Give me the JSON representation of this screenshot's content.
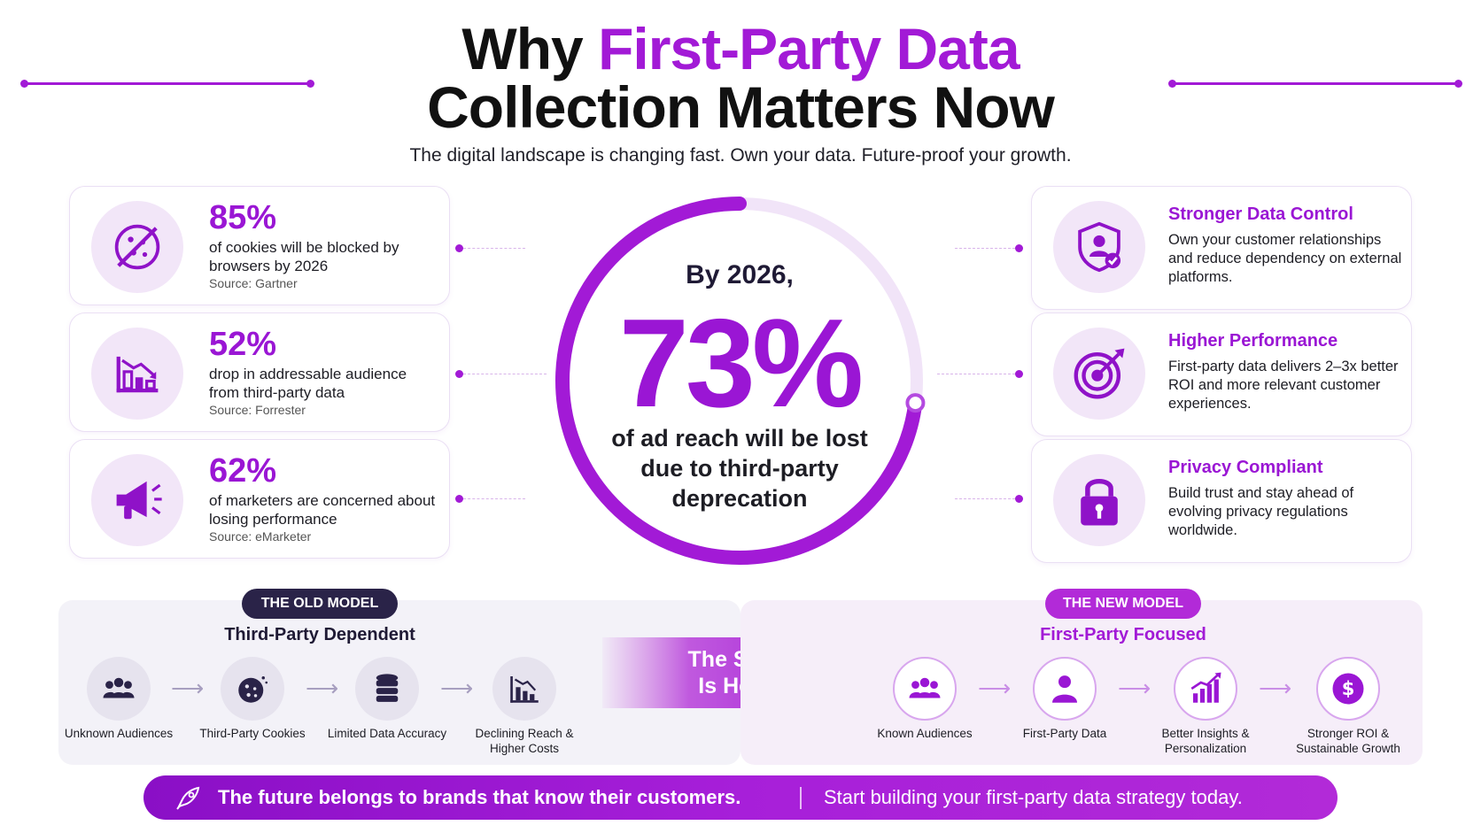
{
  "header": {
    "title_part1": "Why ",
    "title_accent": "First-Party Data",
    "title_line2": "Collection Matters Now",
    "subtitle": "The digital landscape is changing fast. Own your data. Future-proof your growth."
  },
  "stats": [
    {
      "value": "85%",
      "text": "of cookies will be blocked by browsers by 2026",
      "source": "Source: Gartner",
      "icon": "blocked-cookie-icon"
    },
    {
      "value": "52%",
      "text": "drop in addressable audience from third-party data",
      "source": "Source: Forrester",
      "icon": "declining-chart-icon"
    },
    {
      "value": "62%",
      "text": "of marketers are concerned about losing performance",
      "source": "Source: eMarketer",
      "icon": "megaphone-icon"
    }
  ],
  "center": {
    "lead": "By 2026,",
    "big_value": "73%",
    "description": "of ad reach will be lost due to third-party deprecation",
    "ring_progress": 0.73
  },
  "benefits": [
    {
      "title": "Stronger Data Control",
      "text": "Own your customer relationships and reduce dependency on external platforms.",
      "icon": "shield-user-icon"
    },
    {
      "title": "Higher Performance",
      "text": "First-party data delivers 2–3x better ROI and more relevant customer experiences.",
      "icon": "target-icon"
    },
    {
      "title": "Privacy Compliant",
      "text": "Build trust and stay ahead of evolving privacy regulations worldwide.",
      "icon": "lock-icon"
    }
  ],
  "old_model": {
    "badge": "THE OLD MODEL",
    "subtitle": "Third-Party Dependent",
    "steps": [
      {
        "label": "Unknown Audiences",
        "icon": "audience-icon"
      },
      {
        "label": "Third-Party Cookies",
        "icon": "cookie-icon"
      },
      {
        "label": "Limited Data Accuracy",
        "icon": "database-icon"
      },
      {
        "label": "Declining Reach & Higher Costs",
        "icon": "declining-chart-icon"
      }
    ]
  },
  "shift": {
    "line1": "The Shift",
    "line2": "Is Here"
  },
  "new_model": {
    "badge": "THE NEW MODEL",
    "subtitle": "First-Party Focused",
    "steps": [
      {
        "label": "Known Audiences",
        "icon": "audience-icon"
      },
      {
        "label": "First-Party Data",
        "icon": "user-icon"
      },
      {
        "label": "Better Insights & Personalization",
        "icon": "growth-chart-icon"
      },
      {
        "label": "Stronger ROI & Sustainable Growth",
        "icon": "dollar-icon"
      }
    ]
  },
  "footer": {
    "left": "The future belongs to brands that know their customers.",
    "right": "Start building your first-party data strategy today.",
    "icon": "rocket-icon"
  },
  "colors": {
    "accent": "#a21ad6",
    "dark": "#1f1a35",
    "old_badge": "#2a2348",
    "new_badge": "#b22ad8"
  }
}
